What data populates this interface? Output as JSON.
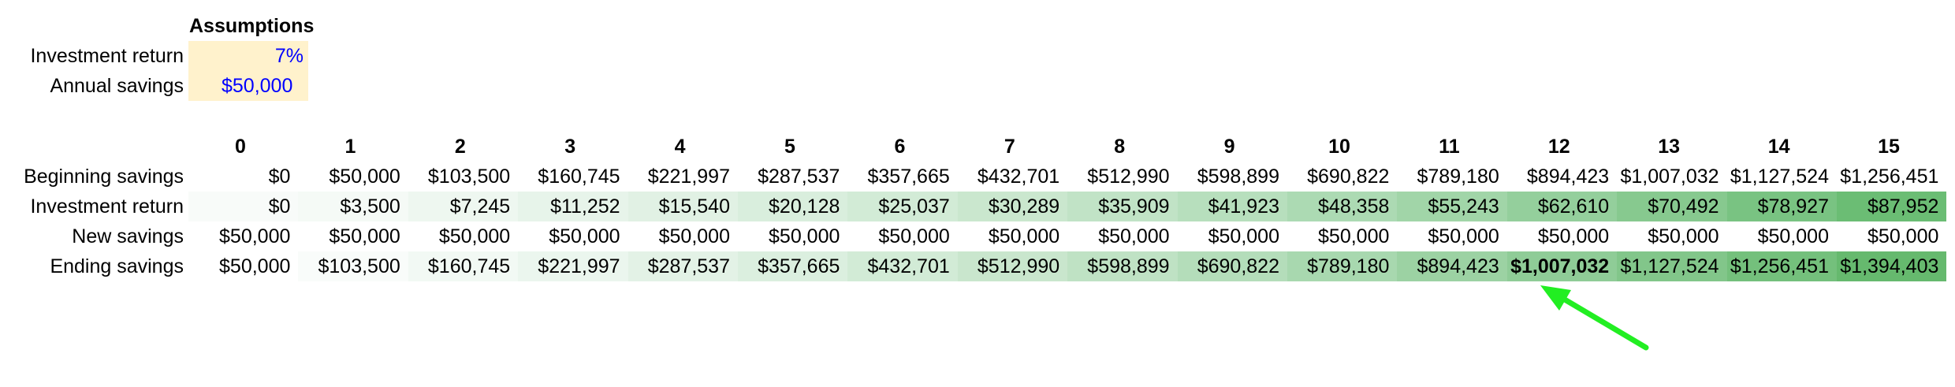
{
  "assumptions": {
    "title": "Assumptions",
    "rows": [
      {
        "label": "Investment return",
        "value": "7%"
      },
      {
        "label": "Annual savings",
        "value": "$50,000"
      }
    ]
  },
  "years": [
    "0",
    "1",
    "2",
    "3",
    "4",
    "5",
    "6",
    "7",
    "8",
    "9",
    "10",
    "11",
    "12",
    "13",
    "14",
    "15"
  ],
  "rows": [
    {
      "label": "Beginning savings",
      "values": [
        "$0",
        "$50,000",
        "$103,500",
        "$160,745",
        "$221,997",
        "$287,537",
        "$357,665",
        "$432,701",
        "$512,990",
        "$598,899",
        "$690,822",
        "$789,180",
        "$894,423",
        "$1,007,032",
        "$1,127,524",
        "$1,256,451"
      ],
      "colors": [
        "#ffffff",
        "#ffffff",
        "#ffffff",
        "#ffffff",
        "#ffffff",
        "#ffffff",
        "#ffffff",
        "#ffffff",
        "#ffffff",
        "#ffffff",
        "#ffffff",
        "#ffffff",
        "#ffffff",
        "#ffffff",
        "#ffffff",
        "#ffffff"
      ]
    },
    {
      "label": "Investment return",
      "values": [
        "$0",
        "$3,500",
        "$7,245",
        "$11,252",
        "$15,540",
        "$20,128",
        "$25,037",
        "$30,289",
        "$35,909",
        "$41,923",
        "$48,358",
        "$55,243",
        "$62,610",
        "$70,492",
        "$78,927",
        "$87,952"
      ],
      "colors": [
        "#f8fbf9",
        "#f5faf6",
        "#eef7f0",
        "#e7f4ea",
        "#e1f1e4",
        "#d9eedd",
        "#d2ebd6",
        "#cae7ce",
        "#c1e3c6",
        "#b7dfbd",
        "#acdab3",
        "#a1d5a8",
        "#94cf9c",
        "#87c98f",
        "#79c382",
        "#6bbd74"
      ]
    },
    {
      "label": "New savings",
      "values": [
        "$50,000",
        "$50,000",
        "$50,000",
        "$50,000",
        "$50,000",
        "$50,000",
        "$50,000",
        "$50,000",
        "$50,000",
        "$50,000",
        "$50,000",
        "$50,000",
        "$50,000",
        "$50,000",
        "$50,000",
        "$50,000"
      ],
      "colors": [
        "#ffffff",
        "#ffffff",
        "#ffffff",
        "#ffffff",
        "#ffffff",
        "#ffffff",
        "#ffffff",
        "#ffffff",
        "#ffffff",
        "#ffffff",
        "#ffffff",
        "#ffffff",
        "#ffffff",
        "#ffffff",
        "#ffffff",
        "#ffffff"
      ]
    },
    {
      "label": "Ending savings",
      "values": [
        "$50,000",
        "$103,500",
        "$160,745",
        "$221,997",
        "$287,537",
        "$357,665",
        "$432,701",
        "$512,990",
        "$598,899",
        "$690,822",
        "$789,180",
        "$894,423",
        "$1,007,032",
        "$1,127,524",
        "$1,256,451",
        "$1,394,403"
      ],
      "colors": [
        "#ffffff",
        "#f9fcfa",
        "#f2f9f4",
        "#ebf6ee",
        "#e3f2e6",
        "#dbefdf",
        "#d2ebd6",
        "#c9e6cd",
        "#bfe2c4",
        "#b4ddba",
        "#a8d8af",
        "#9cd2a3",
        "#8fcc97",
        "#82c68a",
        "#74c07c",
        "#66b96e"
      ],
      "highlight_index": 12
    }
  ],
  "annotation": {
    "arrow_color": "#22ee22",
    "target": "Ending savings, year 12"
  }
}
